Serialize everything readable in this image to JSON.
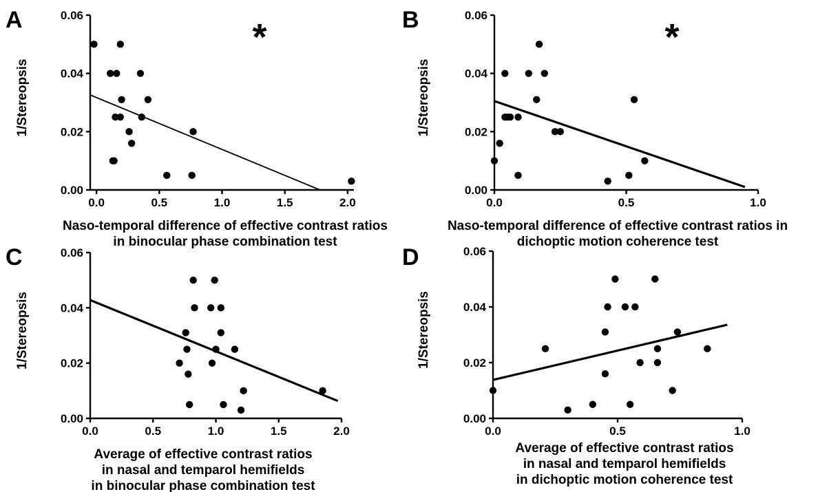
{
  "chart_data": [
    {
      "type": "scatter",
      "panel_label": "A",
      "title": "",
      "xlabel": "Naso-temporal difference of effective contrast ratios\nin binocular phase combination test",
      "ylabel": "1/Stereopsis",
      "xlim": [
        -0.05,
        2.05
      ],
      "ylim": [
        0,
        0.06
      ],
      "x_ticks": [
        "0.0",
        "0.5",
        "1.0",
        "1.5",
        "2.0"
      ],
      "y_ticks": [
        "0.00",
        "0.02",
        "0.04",
        "0.06"
      ],
      "x_tick_values": [
        0,
        0.5,
        1.0,
        1.5,
        2.0
      ],
      "y_tick_values": [
        0,
        0.02,
        0.04,
        0.06
      ],
      "annotation": "*",
      "points": [
        {
          "x": -0.02,
          "y": 0.05
        },
        {
          "x": 0.11,
          "y": 0.04
        },
        {
          "x": 0.16,
          "y": 0.04
        },
        {
          "x": 0.19,
          "y": 0.05
        },
        {
          "x": 0.2,
          "y": 0.031
        },
        {
          "x": 0.15,
          "y": 0.025
        },
        {
          "x": 0.19,
          "y": 0.025
        },
        {
          "x": 0.13,
          "y": 0.01
        },
        {
          "x": 0.14,
          "y": 0.01
        },
        {
          "x": 0.26,
          "y": 0.02
        },
        {
          "x": 0.28,
          "y": 0.016
        },
        {
          "x": 0.35,
          "y": 0.04
        },
        {
          "x": 0.36,
          "y": 0.025
        },
        {
          "x": 0.41,
          "y": 0.031
        },
        {
          "x": 0.56,
          "y": 0.005
        },
        {
          "x": 0.77,
          "y": 0.02
        },
        {
          "x": 0.76,
          "y": 0.005
        },
        {
          "x": 2.03,
          "y": 0.003
        }
      ],
      "fit_line": {
        "x": [
          -0.05,
          1.78
        ],
        "y": [
          0.0326,
          0.0
        ],
        "weight": "thin"
      }
    },
    {
      "type": "scatter",
      "panel_label": "B",
      "title": "",
      "xlabel": "Naso-temporal difference of effective contrast ratios in\ndichoptic motion coherence test",
      "ylabel": "1/Stereopsis",
      "xlim": [
        0,
        1.0
      ],
      "ylim": [
        0,
        0.06
      ],
      "x_ticks": [
        "0.0",
        "0.5",
        "1.0"
      ],
      "y_ticks": [
        "0.00",
        "0.02",
        "0.04",
        "0.06"
      ],
      "x_tick_values": [
        0,
        0.5,
        1.0
      ],
      "y_tick_values": [
        0,
        0.02,
        0.04,
        0.06
      ],
      "annotation": "*",
      "points": [
        {
          "x": 0.0,
          "y": 0.01
        },
        {
          "x": 0.02,
          "y": 0.016
        },
        {
          "x": 0.04,
          "y": 0.025
        },
        {
          "x": 0.05,
          "y": 0.025
        },
        {
          "x": 0.06,
          "y": 0.025
        },
        {
          "x": 0.09,
          "y": 0.025
        },
        {
          "x": 0.04,
          "y": 0.04
        },
        {
          "x": 0.09,
          "y": 0.005
        },
        {
          "x": 0.13,
          "y": 0.04
        },
        {
          "x": 0.16,
          "y": 0.031
        },
        {
          "x": 0.17,
          "y": 0.05
        },
        {
          "x": 0.19,
          "y": 0.04
        },
        {
          "x": 0.23,
          "y": 0.02
        },
        {
          "x": 0.25,
          "y": 0.02
        },
        {
          "x": 0.43,
          "y": 0.003
        },
        {
          "x": 0.51,
          "y": 0.005
        },
        {
          "x": 0.53,
          "y": 0.031
        },
        {
          "x": 0.57,
          "y": 0.01
        }
      ],
      "fit_line": {
        "x": [
          0.0,
          0.95
        ],
        "y": [
          0.0305,
          0.001
        ],
        "weight": "thick"
      }
    },
    {
      "type": "scatter",
      "panel_label": "C",
      "title": "",
      "xlabel": "Average of effective contrast ratios\nin nasal and temparol hemifields\nin binocular phase combination test",
      "ylabel": "1/Stereopsis",
      "xlim": [
        0,
        2.0
      ],
      "ylim": [
        0,
        0.06
      ],
      "x_ticks": [
        "0.0",
        "0.5",
        "1.0",
        "1.5",
        "2.0"
      ],
      "y_ticks": [
        "0.00",
        "0.02",
        "0.04",
        "0.06"
      ],
      "x_tick_values": [
        0,
        0.5,
        1.0,
        1.5,
        2.0
      ],
      "y_tick_values": [
        0,
        0.02,
        0.04,
        0.06
      ],
      "annotation": "",
      "points": [
        {
          "x": 0.71,
          "y": 0.02
        },
        {
          "x": 0.76,
          "y": 0.031
        },
        {
          "x": 0.77,
          "y": 0.025
        },
        {
          "x": 0.78,
          "y": 0.016
        },
        {
          "x": 0.79,
          "y": 0.005
        },
        {
          "x": 0.82,
          "y": 0.05
        },
        {
          "x": 0.83,
          "y": 0.04
        },
        {
          "x": 0.96,
          "y": 0.04
        },
        {
          "x": 0.97,
          "y": 0.02
        },
        {
          "x": 0.99,
          "y": 0.05
        },
        {
          "x": 1.0,
          "y": 0.025
        },
        {
          "x": 1.04,
          "y": 0.04
        },
        {
          "x": 1.04,
          "y": 0.031
        },
        {
          "x": 1.06,
          "y": 0.005
        },
        {
          "x": 1.15,
          "y": 0.025
        },
        {
          "x": 1.2,
          "y": 0.003
        },
        {
          "x": 1.22,
          "y": 0.01
        },
        {
          "x": 1.85,
          "y": 0.01
        }
      ],
      "fit_line": {
        "x": [
          0.0,
          1.97
        ],
        "y": [
          0.0428,
          0.0063
        ],
        "weight": "thick"
      }
    },
    {
      "type": "scatter",
      "panel_label": "D",
      "title": "",
      "xlabel": "Average of effective contrast ratios\nin nasal and temparol hemifields\nin dichoptic motion coherence test",
      "ylabel": "1/Stereopsis",
      "xlim": [
        0,
        1.0
      ],
      "ylim": [
        0,
        0.06
      ],
      "x_ticks": [
        "0.0",
        "0.5",
        "1.0"
      ],
      "y_ticks": [
        "0.00",
        "0.02",
        "0.04",
        "0.06"
      ],
      "x_tick_values": [
        0,
        0.5,
        1.0
      ],
      "y_tick_values": [
        0,
        0.02,
        0.04,
        0.06
      ],
      "annotation": "",
      "points": [
        {
          "x": 0.0,
          "y": 0.01
        },
        {
          "x": 0.21,
          "y": 0.025
        },
        {
          "x": 0.3,
          "y": 0.003
        },
        {
          "x": 0.4,
          "y": 0.005
        },
        {
          "x": 0.45,
          "y": 0.031
        },
        {
          "x": 0.45,
          "y": 0.016
        },
        {
          "x": 0.46,
          "y": 0.04
        },
        {
          "x": 0.49,
          "y": 0.05
        },
        {
          "x": 0.53,
          "y": 0.04
        },
        {
          "x": 0.55,
          "y": 0.005
        },
        {
          "x": 0.57,
          "y": 0.04
        },
        {
          "x": 0.59,
          "y": 0.02
        },
        {
          "x": 0.65,
          "y": 0.05
        },
        {
          "x": 0.66,
          "y": 0.025
        },
        {
          "x": 0.66,
          "y": 0.02
        },
        {
          "x": 0.72,
          "y": 0.01
        },
        {
          "x": 0.74,
          "y": 0.031
        },
        {
          "x": 0.86,
          "y": 0.025
        }
      ],
      "fit_line": {
        "x": [
          0.0,
          0.94
        ],
        "y": [
          0.0138,
          0.0336
        ],
        "weight": "thick"
      }
    }
  ]
}
